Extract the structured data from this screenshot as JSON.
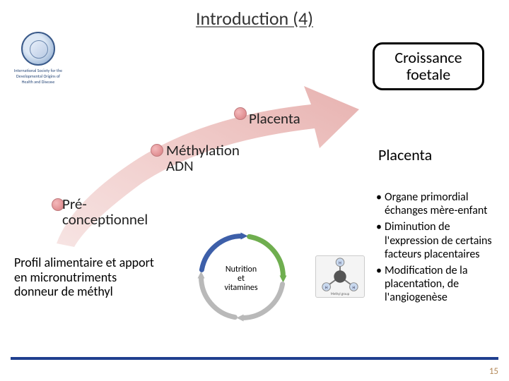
{
  "title": "Introduction (4)",
  "logo": {
    "line1": "International Society for the",
    "line2": "Developmental Origins of",
    "line3": "Health and Disease"
  },
  "croissance": "Croissance\nfoetale",
  "nodes": {
    "placenta": "Placenta",
    "methylation": "Méthylation\nADN",
    "preconceptionnel": "Pré-\nconceptionnel"
  },
  "profil": "Profil alimentaire et apport en micronutriments donneur de méthyl",
  "cycle_label": "Nutrition\net\nvitamines",
  "sidebar": {
    "title": "Placenta",
    "bullets": [
      "Organe primordial échanges mère-enfant",
      "Diminution de l'expression de certains facteurs placentaires",
      "Modification de la placentation, de l'angiogenèse"
    ]
  },
  "page_number": "15",
  "arrow": {
    "fill_light": "#f1d5d4",
    "fill_dark": "#e9b7b6",
    "node_fill": "#eaa6a8",
    "node_border": "#c9888a"
  },
  "cycle": {
    "arcs": [
      {
        "start": -80,
        "end": 0,
        "color": "#6fae4f"
      },
      {
        "start": 10,
        "end": 90,
        "color": "#b9b9b9"
      },
      {
        "start": 100,
        "end": 180,
        "color": "#b9b9b9"
      },
      {
        "start": 190,
        "end": 270,
        "color": "#3d5fa9"
      }
    ],
    "radius": 58,
    "stroke_width": 7
  },
  "colors": {
    "footer": "#1f3f8f",
    "pagenum": "#b48a5a",
    "box_border": "#000000"
  }
}
